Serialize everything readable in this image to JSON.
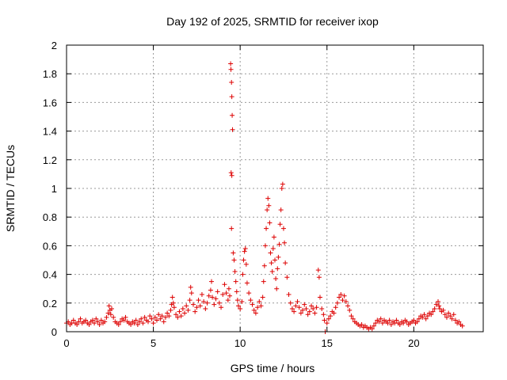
{
  "chart_data": {
    "type": "scatter",
    "title": "Day 192 of 2025, SRMTID for receiver ixop",
    "xlabel": "GPS time / hours",
    "ylabel": "SRMTID / TECUs",
    "xlim": [
      0,
      24
    ],
    "ylim": [
      0,
      2
    ],
    "xticks": [
      0,
      5,
      10,
      15,
      20
    ],
    "yticks": [
      0,
      0.2,
      0.4,
      0.6,
      0.8,
      1,
      1.2,
      1.4,
      1.6,
      1.8,
      2
    ],
    "xtick_labels": [
      "0",
      "5",
      "10",
      "15",
      "20"
    ],
    "ytick_labels": [
      "0",
      "0.2",
      "0.4",
      "0.6",
      "0.8",
      "1",
      "1.2",
      "1.4",
      "1.6",
      "1.8",
      "2"
    ],
    "grid": true,
    "marker": "+",
    "marker_color": "#dd0000",
    "series": [
      {
        "name": "SRMTID",
        "points": [
          [
            0.0,
            0.06
          ],
          [
            0.1,
            0.07
          ],
          [
            0.2,
            0.05
          ],
          [
            0.3,
            0.06
          ],
          [
            0.4,
            0.08
          ],
          [
            0.5,
            0.06
          ],
          [
            0.6,
            0.05
          ],
          [
            0.7,
            0.07
          ],
          [
            0.8,
            0.09
          ],
          [
            0.9,
            0.06
          ],
          [
            1.0,
            0.07
          ],
          [
            1.1,
            0.08
          ],
          [
            1.2,
            0.06
          ],
          [
            1.3,
            0.05
          ],
          [
            1.4,
            0.07
          ],
          [
            1.5,
            0.08
          ],
          [
            1.6,
            0.06
          ],
          [
            1.7,
            0.09
          ],
          [
            1.8,
            0.07
          ],
          [
            1.9,
            0.05
          ],
          [
            2.0,
            0.08
          ],
          [
            2.1,
            0.06
          ],
          [
            2.2,
            0.07
          ],
          [
            2.3,
            0.1
          ],
          [
            2.4,
            0.13
          ],
          [
            2.45,
            0.18
          ],
          [
            2.5,
            0.15
          ],
          [
            2.55,
            0.12
          ],
          [
            2.6,
            0.16
          ],
          [
            2.7,
            0.1
          ],
          [
            2.8,
            0.07
          ],
          [
            2.9,
            0.06
          ],
          [
            3.0,
            0.05
          ],
          [
            3.1,
            0.07
          ],
          [
            3.2,
            0.09
          ],
          [
            3.3,
            0.08
          ],
          [
            3.4,
            0.1
          ],
          [
            3.5,
            0.07
          ],
          [
            3.6,
            0.06
          ],
          [
            3.7,
            0.05
          ],
          [
            3.8,
            0.07
          ],
          [
            3.9,
            0.06
          ],
          [
            4.0,
            0.08
          ],
          [
            4.1,
            0.05
          ],
          [
            4.2,
            0.07
          ],
          [
            4.3,
            0.09
          ],
          [
            4.4,
            0.06
          ],
          [
            4.5,
            0.1
          ],
          [
            4.6,
            0.08
          ],
          [
            4.7,
            0.07
          ],
          [
            4.8,
            0.11
          ],
          [
            4.9,
            0.09
          ],
          [
            5.0,
            0.06
          ],
          [
            5.1,
            0.1
          ],
          [
            5.2,
            0.08
          ],
          [
            5.3,
            0.12
          ],
          [
            5.4,
            0.09
          ],
          [
            5.5,
            0.11
          ],
          [
            5.6,
            0.07
          ],
          [
            5.7,
            0.1
          ],
          [
            5.8,
            0.13
          ],
          [
            5.9,
            0.11
          ],
          [
            6.0,
            0.15
          ],
          [
            6.05,
            0.19
          ],
          [
            6.1,
            0.24
          ],
          [
            6.15,
            0.2
          ],
          [
            6.2,
            0.17
          ],
          [
            6.3,
            0.12
          ],
          [
            6.4,
            0.1
          ],
          [
            6.5,
            0.14
          ],
          [
            6.6,
            0.11
          ],
          [
            6.7,
            0.16
          ],
          [
            6.8,
            0.13
          ],
          [
            6.9,
            0.18
          ],
          [
            7.0,
            0.15
          ],
          [
            7.1,
            0.22
          ],
          [
            7.15,
            0.31
          ],
          [
            7.2,
            0.27
          ],
          [
            7.3,
            0.19
          ],
          [
            7.4,
            0.14
          ],
          [
            7.5,
            0.17
          ],
          [
            7.6,
            0.22
          ],
          [
            7.7,
            0.18
          ],
          [
            7.8,
            0.26
          ],
          [
            7.9,
            0.21
          ],
          [
            8.0,
            0.16
          ],
          [
            8.1,
            0.2
          ],
          [
            8.2,
            0.25
          ],
          [
            8.3,
            0.29
          ],
          [
            8.35,
            0.35
          ],
          [
            8.4,
            0.24
          ],
          [
            8.5,
            0.19
          ],
          [
            8.6,
            0.23
          ],
          [
            8.7,
            0.28
          ],
          [
            8.8,
            0.2
          ],
          [
            8.9,
            0.17
          ],
          [
            9.0,
            0.26
          ],
          [
            9.1,
            0.33
          ],
          [
            9.2,
            0.27
          ],
          [
            9.3,
            0.22
          ],
          [
            9.35,
            0.3
          ],
          [
            9.4,
            0.25
          ],
          [
            9.45,
            1.87
          ],
          [
            9.47,
            1.83
          ],
          [
            9.5,
            1.74
          ],
          [
            9.52,
            1.64
          ],
          [
            9.54,
            1.51
          ],
          [
            9.56,
            1.41
          ],
          [
            9.48,
            1.11
          ],
          [
            9.52,
            1.09
          ],
          [
            9.5,
            0.72
          ],
          [
            9.6,
            0.55
          ],
          [
            9.65,
            0.5
          ],
          [
            9.7,
            0.42
          ],
          [
            9.75,
            0.35
          ],
          [
            9.8,
            0.28
          ],
          [
            9.85,
            0.22
          ],
          [
            9.9,
            0.18
          ],
          [
            10.0,
            0.16
          ],
          [
            10.1,
            0.21
          ],
          [
            10.15,
            0.4
          ],
          [
            10.2,
            0.5
          ],
          [
            10.25,
            0.56
          ],
          [
            10.3,
            0.58
          ],
          [
            10.35,
            0.47
          ],
          [
            10.4,
            0.34
          ],
          [
            10.5,
            0.27
          ],
          [
            10.6,
            0.22
          ],
          [
            10.7,
            0.19
          ],
          [
            10.8,
            0.15
          ],
          [
            10.9,
            0.13
          ],
          [
            11.0,
            0.17
          ],
          [
            11.1,
            0.21
          ],
          [
            11.2,
            0.18
          ],
          [
            11.3,
            0.24
          ],
          [
            11.35,
            0.35
          ],
          [
            11.4,
            0.46
          ],
          [
            11.45,
            0.6
          ],
          [
            11.5,
            0.72
          ],
          [
            11.55,
            0.85
          ],
          [
            11.6,
            0.93
          ],
          [
            11.65,
            0.88
          ],
          [
            11.7,
            0.76
          ],
          [
            11.75,
            0.55
          ],
          [
            11.8,
            0.48
          ],
          [
            11.85,
            0.42
          ],
          [
            11.9,
            0.58
          ],
          [
            11.95,
            0.66
          ],
          [
            12.0,
            0.5
          ],
          [
            12.05,
            0.37
          ],
          [
            12.1,
            0.3
          ],
          [
            12.15,
            0.44
          ],
          [
            12.2,
            0.52
          ],
          [
            12.25,
            0.61
          ],
          [
            12.3,
            0.75
          ],
          [
            12.35,
            0.85
          ],
          [
            12.4,
            1.0
          ],
          [
            12.45,
            1.03
          ],
          [
            12.5,
            0.72
          ],
          [
            12.55,
            0.62
          ],
          [
            12.6,
            0.48
          ],
          [
            12.7,
            0.38
          ],
          [
            12.8,
            0.26
          ],
          [
            12.9,
            0.2
          ],
          [
            13.0,
            0.16
          ],
          [
            13.1,
            0.14
          ],
          [
            13.2,
            0.18
          ],
          [
            13.3,
            0.21
          ],
          [
            13.4,
            0.17
          ],
          [
            13.5,
            0.13
          ],
          [
            13.6,
            0.15
          ],
          [
            13.7,
            0.19
          ],
          [
            13.8,
            0.16
          ],
          [
            13.9,
            0.12
          ],
          [
            14.0,
            0.14
          ],
          [
            14.1,
            0.18
          ],
          [
            14.2,
            0.16
          ],
          [
            14.3,
            0.13
          ],
          [
            14.4,
            0.17
          ],
          [
            14.5,
            0.43
          ],
          [
            14.55,
            0.38
          ],
          [
            14.6,
            0.24
          ],
          [
            14.7,
            0.16
          ],
          [
            14.8,
            0.12
          ],
          [
            14.85,
            0.08
          ],
          [
            14.9,
            0.0
          ],
          [
            15.0,
            0.06
          ],
          [
            15.1,
            0.09
          ],
          [
            15.2,
            0.11
          ],
          [
            15.3,
            0.14
          ],
          [
            15.4,
            0.13
          ],
          [
            15.5,
            0.17
          ],
          [
            15.6,
            0.2
          ],
          [
            15.7,
            0.24
          ],
          [
            15.8,
            0.26
          ],
          [
            15.9,
            0.22
          ],
          [
            16.0,
            0.25
          ],
          [
            16.1,
            0.21
          ],
          [
            16.2,
            0.18
          ],
          [
            16.3,
            0.15
          ],
          [
            16.4,
            0.11
          ],
          [
            16.5,
            0.09
          ],
          [
            16.6,
            0.07
          ],
          [
            16.7,
            0.06
          ],
          [
            16.8,
            0.05
          ],
          [
            16.9,
            0.04
          ],
          [
            17.0,
            0.05
          ],
          [
            17.1,
            0.03
          ],
          [
            17.2,
            0.04
          ],
          [
            17.3,
            0.03
          ],
          [
            17.4,
            0.02
          ],
          [
            17.5,
            0.03
          ],
          [
            17.6,
            0.02
          ],
          [
            17.7,
            0.04
          ],
          [
            17.8,
            0.06
          ],
          [
            17.9,
            0.08
          ],
          [
            18.0,
            0.07
          ],
          [
            18.1,
            0.09
          ],
          [
            18.2,
            0.06
          ],
          [
            18.3,
            0.08
          ],
          [
            18.4,
            0.07
          ],
          [
            18.5,
            0.06
          ],
          [
            18.6,
            0.08
          ],
          [
            18.7,
            0.05
          ],
          [
            18.8,
            0.07
          ],
          [
            18.9,
            0.06
          ],
          [
            19.0,
            0.08
          ],
          [
            19.1,
            0.06
          ],
          [
            19.2,
            0.05
          ],
          [
            19.3,
            0.07
          ],
          [
            19.4,
            0.06
          ],
          [
            19.5,
            0.08
          ],
          [
            19.6,
            0.07
          ],
          [
            19.7,
            0.05
          ],
          [
            19.8,
            0.06
          ],
          [
            19.9,
            0.07
          ],
          [
            20.0,
            0.08
          ],
          [
            20.1,
            0.06
          ],
          [
            20.2,
            0.07
          ],
          [
            20.3,
            0.09
          ],
          [
            20.4,
            0.11
          ],
          [
            20.5,
            0.1
          ],
          [
            20.6,
            0.12
          ],
          [
            20.7,
            0.09
          ],
          [
            20.8,
            0.11
          ],
          [
            20.9,
            0.13
          ],
          [
            21.0,
            0.12
          ],
          [
            21.1,
            0.14
          ],
          [
            21.2,
            0.16
          ],
          [
            21.3,
            0.19
          ],
          [
            21.4,
            0.21
          ],
          [
            21.45,
            0.18
          ],
          [
            21.5,
            0.16
          ],
          [
            21.6,
            0.14
          ],
          [
            21.7,
            0.15
          ],
          [
            21.8,
            0.12
          ],
          [
            21.9,
            0.1
          ],
          [
            22.0,
            0.13
          ],
          [
            22.1,
            0.11
          ],
          [
            22.2,
            0.09
          ],
          [
            22.3,
            0.12
          ],
          [
            22.4,
            0.08
          ],
          [
            22.5,
            0.06
          ],
          [
            22.6,
            0.07
          ],
          [
            22.7,
            0.05
          ],
          [
            22.8,
            0.04
          ]
        ]
      }
    ]
  }
}
